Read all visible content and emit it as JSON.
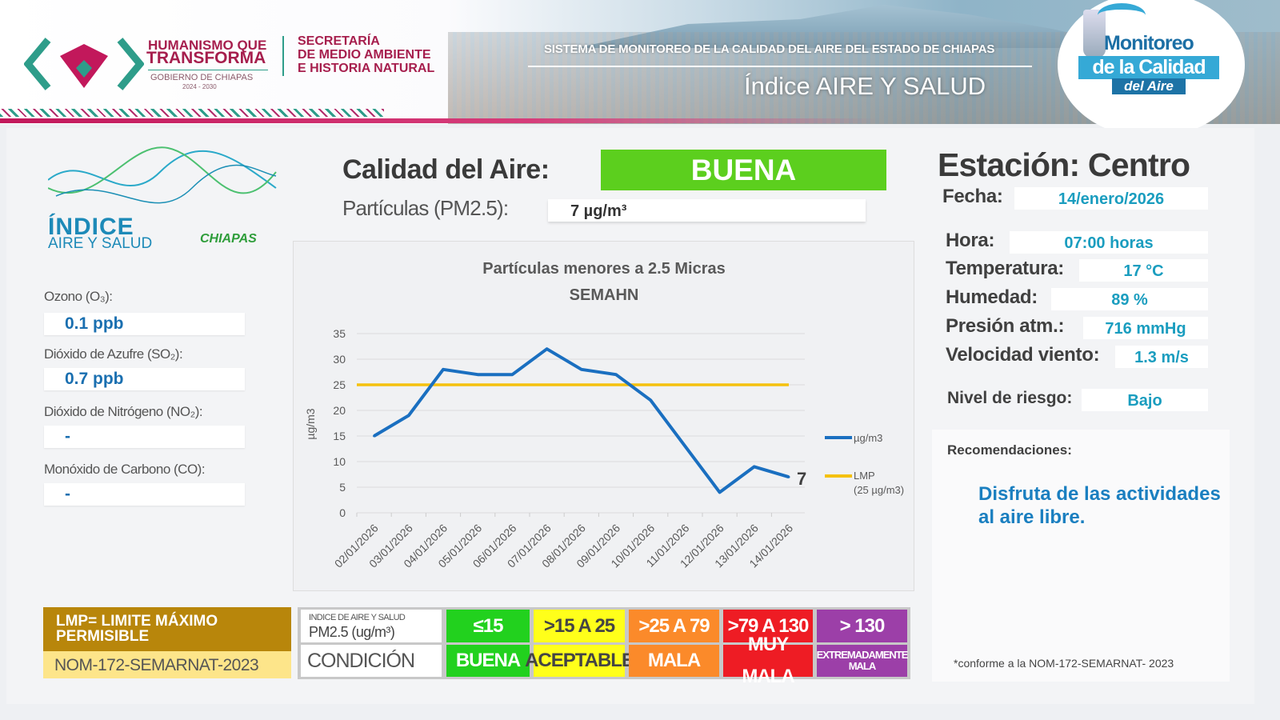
{
  "header": {
    "government_line1": "HUMANISMO QUE",
    "government_line2": "TRANSFORMA",
    "government_sub": "GOBIERNO DE CHIAPAS",
    "government_years": "2024 - 2030",
    "secretaria_line1": "SECRETARÍA",
    "secretaria_line2": "DE MEDIO AMBIENTE",
    "secretaria_line3": "E HISTORIA NATURAL",
    "system_title": "SISTEMA DE MONITOREO DE LA CALIDAD DEL AIRE DEL ESTADO DE CHIAPAS",
    "index_title": "Índice AIRE Y SALUD",
    "logo_line1": "Monitoreo",
    "logo_line2": "de la Calidad",
    "logo_line3": "del Aire"
  },
  "brand": {
    "line1": "ÍNDICE",
    "line2": "AIRE Y SALUD",
    "line3": "CHIAPAS"
  },
  "pollutants": [
    {
      "label": "Ozono (O₃):",
      "value": "0.1 ppb"
    },
    {
      "label": "Dióxido de Azufre (SO₂):",
      "value": "0.7 ppb"
    },
    {
      "label": "Dióxido de Nitrógeno (NO₂):",
      "value": "-"
    },
    {
      "label": "Monóxido de Carbono (CO):",
      "value": "-"
    }
  ],
  "quality": {
    "label": "Calidad del Aire:",
    "value": "BUENA",
    "color": "#5ccf1e",
    "pm_label": "Partículas (PM2.5):",
    "pm_value": "7 µg/m³"
  },
  "station": {
    "title": "Estación: Centro",
    "rows": [
      {
        "label": "Fecha:",
        "value": "14/enero/2026"
      },
      {
        "label": "Hora:",
        "value": "07:00 horas"
      },
      {
        "label": "Temperatura:",
        "value": "17 °C"
      },
      {
        "label": "Humedad:",
        "value": "89 %"
      },
      {
        "label": "Presión atm.:",
        "value": "716 mmHg"
      },
      {
        "label": "Velocidad viento:",
        "value": "1.3 m/s"
      }
    ],
    "risk_label": "Nivel de riesgo:",
    "risk_value": "Bajo",
    "recommendations_label": "Recomendaciones:",
    "recommendation": "Disfruta de las actividades al aire libre.",
    "footnote": "*conforme a la NOM-172-SEMARNAT- 2023"
  },
  "legend_box": {
    "lmp": "LMP= LIMITE MÁXIMO PERMISIBLE",
    "norm": "NOM-172-SEMARNAT-2023"
  },
  "scale": {
    "header_label": "INDICE DE AIRE Y SALUD",
    "header_unit": "PM2.5 (ug/m³)",
    "condition_label": "CONDICIÓN",
    "levels": [
      {
        "range": "≤15",
        "condition": "BUENA",
        "color": "#22d11e",
        "text": "#ffffff"
      },
      {
        "range": ">15 A 25",
        "condition": "ACEPTABLE",
        "color": "#ffff1a",
        "text": "#444444"
      },
      {
        "range": ">25 A 79",
        "condition": "MALA",
        "color": "#fb8a2a",
        "text": "#ffffff"
      },
      {
        "range": ">79 A 130",
        "condition": "MUY MALA",
        "color": "#ee1c24",
        "text": "#ffffff"
      },
      {
        "range": "> 130",
        "condition": "EXTREMADAMENTE MALA",
        "color": "#9c3fa8",
        "text": "#ffffff"
      }
    ]
  },
  "chart_data": {
    "type": "line",
    "title": "Partículas menores a 2.5 Micras",
    "subtitle": "SEMAHN",
    "ylabel": "µg/m3",
    "ylim": [
      0,
      35
    ],
    "yticks": [
      0,
      5,
      10,
      15,
      20,
      25,
      30,
      35
    ],
    "grid": true,
    "legend_placement": "right",
    "categories": [
      "02/01/2026",
      "03/01/2026",
      "04/01/2026",
      "05/01/2026",
      "06/01/2026",
      "07/01/2026",
      "08/01/2026",
      "09/01/2026",
      "10/01/2026",
      "11/01/2026",
      "12/01/2026",
      "13/01/2026",
      "14/01/2026"
    ],
    "series": [
      {
        "name": "µg/m3",
        "color": "#1a6fc0",
        "values": [
          15,
          19,
          28,
          27,
          27,
          32,
          28,
          27,
          22,
          13,
          4,
          9,
          7
        ]
      },
      {
        "name": "LMP",
        "name_sub": "(25 µg/m3)",
        "color": "#f5c10e",
        "values": [
          25,
          25,
          25,
          25,
          25,
          25,
          25,
          25,
          25,
          25,
          25,
          25,
          25
        ]
      }
    ],
    "last_value_label": "7"
  }
}
